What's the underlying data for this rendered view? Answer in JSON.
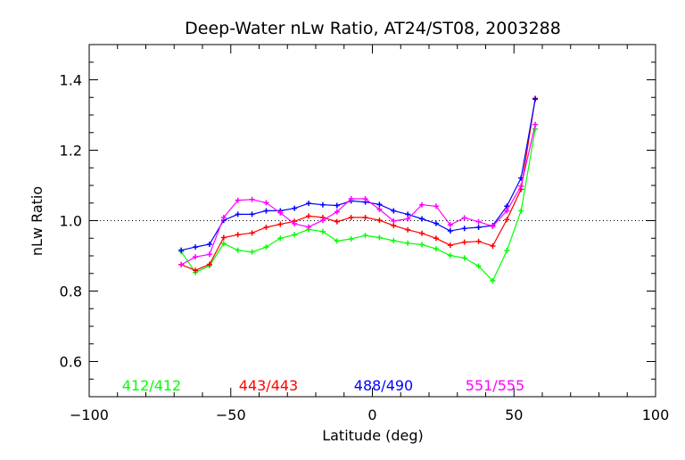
{
  "chart_data": {
    "type": "line",
    "title": "Deep-Water nLw Ratio, AT24/ST08, 2003288",
    "xlabel": "Latitude (deg)",
    "ylabel": "nLw Ratio",
    "xlim": [
      -100,
      100
    ],
    "ylim": [
      0.5,
      1.5
    ],
    "xticks": [
      -100,
      -50,
      0,
      50,
      100
    ],
    "xtick_labels": [
      "−100",
      "−50",
      "0",
      "50",
      "100"
    ],
    "yticks": [
      0.6,
      0.8,
      1.0,
      1.2,
      1.4
    ],
    "ytick_labels": [
      "0.6",
      "0.8",
      "1.0",
      "1.2",
      "1.4"
    ],
    "reference_line": 1.0,
    "legend_placement": "bottom-inside",
    "x": [
      -67.5,
      -62.5,
      -57.5,
      -52.5,
      -47.5,
      -42.5,
      -37.5,
      -32.5,
      -27.5,
      -22.5,
      -17.5,
      -12.5,
      -7.5,
      -2.5,
      2.5,
      7.5,
      12.5,
      17.5,
      22.5,
      27.5,
      32.5,
      37.5,
      42.5,
      47.5,
      52.5,
      57.5
    ],
    "series": [
      {
        "name": "412/412",
        "color": "#00ff00",
        "values": [
          0.912,
          0.853,
          0.872,
          0.935,
          0.916,
          0.911,
          0.925,
          0.95,
          0.96,
          0.975,
          0.969,
          0.942,
          0.948,
          0.958,
          0.952,
          0.943,
          0.936,
          0.932,
          0.92,
          0.901,
          0.894,
          0.871,
          0.829,
          0.915,
          1.028,
          1.26
        ]
      },
      {
        "name": "443/443",
        "color": "#ff0000",
        "values": [
          0.875,
          0.859,
          0.876,
          0.952,
          0.96,
          0.965,
          0.981,
          0.99,
          0.998,
          1.013,
          1.009,
          0.997,
          1.009,
          1.009,
          1.001,
          0.986,
          0.974,
          0.964,
          0.95,
          0.93,
          0.939,
          0.941,
          0.928,
          1.003,
          1.089,
          1.347
        ]
      },
      {
        "name": "488/490",
        "color": "#0000ff",
        "values": [
          0.916,
          0.925,
          0.933,
          1.001,
          1.018,
          1.018,
          1.028,
          1.028,
          1.035,
          1.049,
          1.045,
          1.043,
          1.056,
          1.053,
          1.046,
          1.028,
          1.018,
          1.005,
          0.992,
          0.971,
          0.978,
          0.981,
          0.986,
          1.041,
          1.121,
          1.345
        ]
      },
      {
        "name": "551/555",
        "color": "#ff00ff",
        "values": [
          0.875,
          0.897,
          0.904,
          1.009,
          1.058,
          1.06,
          1.051,
          1.022,
          0.991,
          0.982,
          1.001,
          1.025,
          1.062,
          1.062,
          1.032,
          0.999,
          1.005,
          1.045,
          1.041,
          0.988,
          1.008,
          0.997,
          0.984,
          1.028,
          1.098,
          1.273
        ]
      }
    ]
  }
}
